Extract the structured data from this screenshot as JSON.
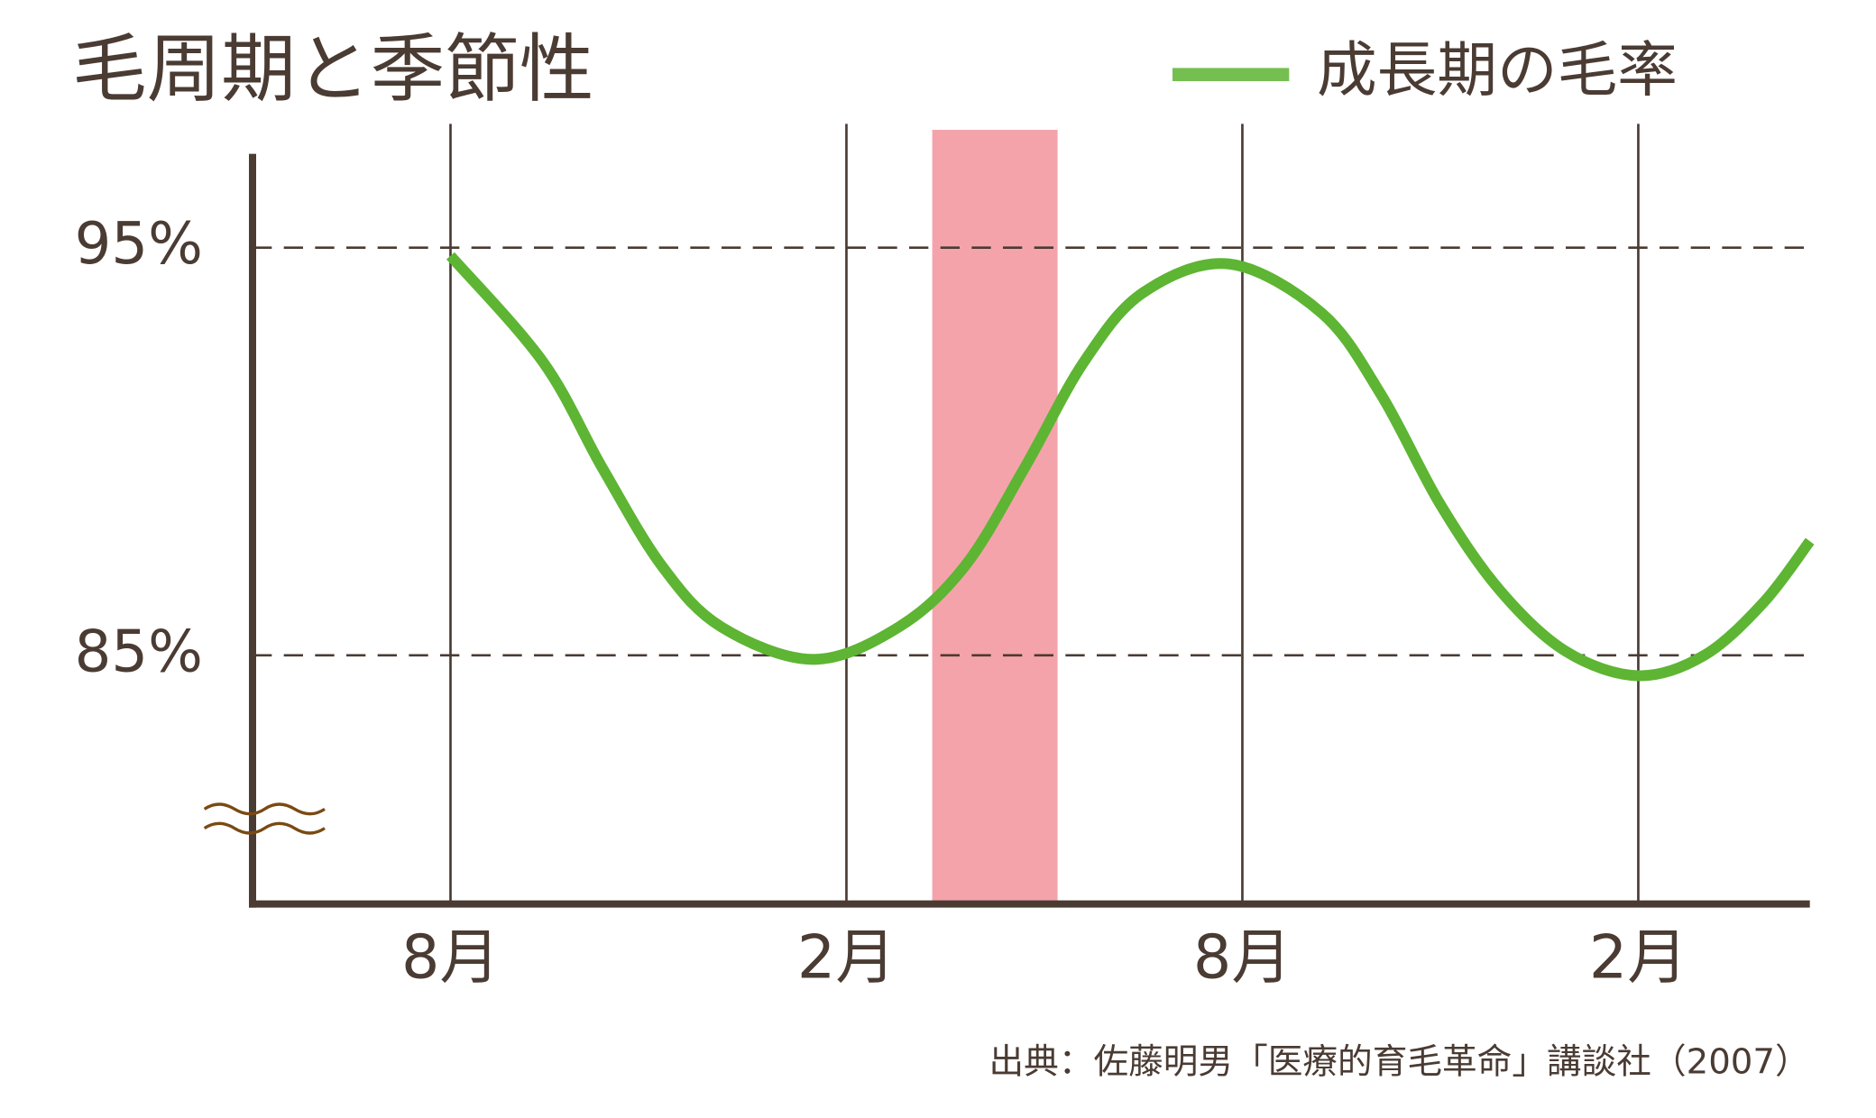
{
  "chart_data": {
    "type": "line",
    "title": "毛周期と季節性",
    "source": "出典：佐藤明男「医療的育毛革命」講談社（2007）",
    "x": [
      0,
      1.4,
      2.3,
      3.2,
      4.1,
      5.5,
      6.8,
      7.8,
      8.7,
      9.6,
      10.5,
      11.8,
      13.2,
      14.1,
      15,
      15.9,
      16.9,
      18,
      19,
      19.9,
      20.6
    ],
    "series": [
      {
        "name": "成長期の毛率",
        "color": "#5db533",
        "values": [
          94.8,
          92.2,
          89.6,
          87.2,
          85.7,
          84.9,
          85.7,
          87.2,
          89.6,
          92.2,
          93.9,
          94.6,
          93.4,
          91.4,
          88.7,
          86.6,
          85.1,
          84.5,
          85.0,
          86.3,
          87.8
        ]
      }
    ],
    "xlim": [
      -3,
      20.6
    ],
    "xticks": [
      {
        "value": 0,
        "label": "8月"
      },
      {
        "value": 6,
        "label": "2月"
      },
      {
        "value": 12,
        "label": "8月"
      },
      {
        "value": 18,
        "label": "2月"
      }
    ],
    "ylim": [
      78.9,
      97.3
    ],
    "yticks": [
      {
        "value": 95,
        "label": "95%"
      },
      {
        "value": 85,
        "label": "85%"
      }
    ],
    "highlight": {
      "x": [
        7.3,
        9.2
      ],
      "color": "#f5a3aa"
    },
    "legend": "top-right"
  }
}
